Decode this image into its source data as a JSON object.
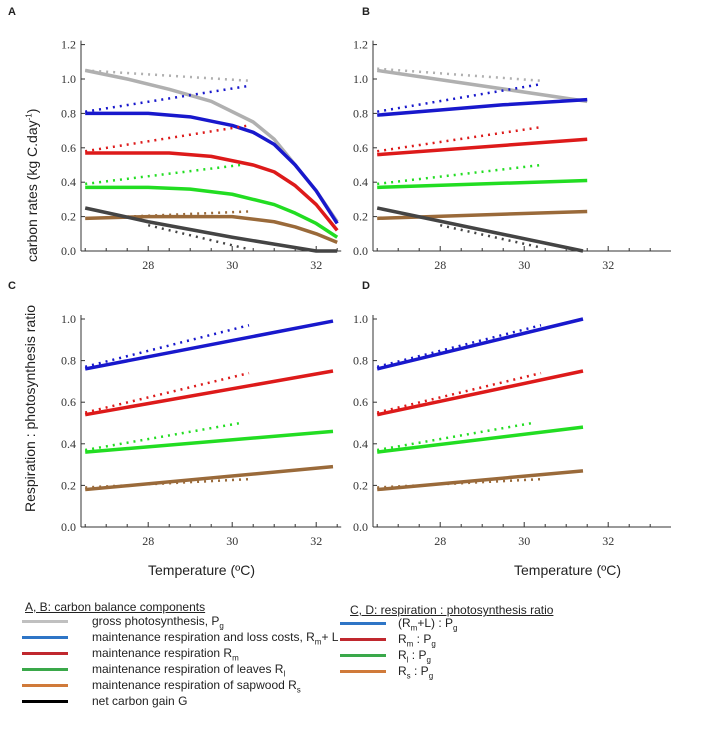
{
  "panel_labels": [
    "A",
    "B",
    "C",
    "D"
  ],
  "y_label_ab": {
    "pre": "carbon rates (kg C.day",
    "sup": "-1",
    "post": ")"
  },
  "y_label_cd": "Respiration : photosynthesis ratio",
  "x_label": "Temperature (ºC)",
  "legend_ab": {
    "title": "A, B: carbon balance components",
    "items": [
      {
        "color": "#c0c0c0",
        "pre": "gross photosynthesis, P",
        "sub1": "g",
        "mid": "",
        "sub2": ""
      },
      {
        "color": "#2e75c6",
        "pre": "maintenance respiration and loss costs, R",
        "sub1": "m",
        "mid": "+ L",
        "sub2": ""
      },
      {
        "color": "#c0282e",
        "pre": "maintenance respiration R",
        "sub1": "m",
        "mid": "",
        "sub2": ""
      },
      {
        "color": "#3aa84a",
        "pre": "maintenance respiration of leaves R",
        "sub1": "l",
        "mid": "",
        "sub2": ""
      },
      {
        "color": "#d07a3a",
        "pre": "maintenance respiration of sapwood R",
        "sub1": "s",
        "mid": "",
        "sub2": ""
      },
      {
        "color": "#000000",
        "pre": "net carbon gain G",
        "sub1": "",
        "mid": "",
        "sub2": ""
      }
    ]
  },
  "legend_cd": {
    "title": "C, D: respiration : photosynthesis ratio",
    "items": [
      {
        "color": "#2e75c6",
        "pre": "(R",
        "sub1": "m",
        "mid": "+L) : P",
        "sub2": "g"
      },
      {
        "color": "#c0282e",
        "pre": "R",
        "sub1": "m",
        "mid": " : P",
        "sub2": "g"
      },
      {
        "color": "#3aa84a",
        "pre": "R",
        "sub1": "l",
        "mid": " : P",
        "sub2": "g"
      },
      {
        "color": "#d07a3a",
        "pre": "R",
        "sub1": "s",
        "mid": " : P",
        "sub2": "g"
      }
    ]
  },
  "chart_data": [
    {
      "panel": "A",
      "type": "line",
      "xlabel": "",
      "ylabel": "carbon rates (kg C.day-1)",
      "xlim": [
        26.4,
        32.5
      ],
      "ylim": [
        0,
        1.2
      ],
      "xticks": [
        28,
        30,
        32
      ],
      "yticks": [
        0.0,
        0.2,
        0.4,
        0.6,
        0.8,
        1.0,
        1.2
      ],
      "series": [
        {
          "name": "gross photosynthesis Pg",
          "color": "#b0b0b0",
          "solid": [
            [
              26.5,
              1.05
            ],
            [
              27.5,
              1.0
            ],
            [
              28.5,
              0.94
            ],
            [
              29.5,
              0.87
            ],
            [
              30.5,
              0.75
            ],
            [
              31,
              0.65
            ],
            [
              31.5,
              0.5
            ],
            [
              32,
              0.35
            ],
            [
              32.5,
              0.17
            ]
          ],
          "dotted": [
            [
              26.5,
              1.05
            ],
            [
              30.4,
              0.99
            ]
          ]
        },
        {
          "name": "Rm+L",
          "color": "#1818cc",
          "solid": [
            [
              26.5,
              0.8
            ],
            [
              28,
              0.8
            ],
            [
              29,
              0.78
            ],
            [
              30,
              0.73
            ],
            [
              30.5,
              0.69
            ],
            [
              31,
              0.62
            ],
            [
              31.5,
              0.5
            ],
            [
              32,
              0.35
            ],
            [
              32.5,
              0.16
            ]
          ],
          "dotted": [
            [
              26.5,
              0.81
            ],
            [
              30.4,
              0.96
            ]
          ]
        },
        {
          "name": "Rm",
          "color": "#dd1a1a",
          "solid": [
            [
              26.5,
              0.57
            ],
            [
              28.5,
              0.57
            ],
            [
              29.5,
              0.55
            ],
            [
              30.5,
              0.5
            ],
            [
              31,
              0.46
            ],
            [
              31.5,
              0.38
            ],
            [
              32,
              0.27
            ],
            [
              32.5,
              0.12
            ]
          ],
          "dotted": [
            [
              26.5,
              0.58
            ],
            [
              30.4,
              0.73
            ]
          ]
        },
        {
          "name": "Rl",
          "color": "#22dd22",
          "solid": [
            [
              26.5,
              0.37
            ],
            [
              28,
              0.37
            ],
            [
              29,
              0.36
            ],
            [
              30,
              0.33
            ],
            [
              30.5,
              0.3
            ],
            [
              31,
              0.27
            ],
            [
              31.5,
              0.22
            ],
            [
              32,
              0.16
            ],
            [
              32.5,
              0.08
            ]
          ],
          "dotted": [
            [
              26.5,
              0.39
            ],
            [
              30.2,
              0.5
            ]
          ]
        },
        {
          "name": "Rs",
          "color": "#9a6a3a",
          "solid": [
            [
              26.5,
              0.19
            ],
            [
              28,
              0.2
            ],
            [
              30,
              0.2
            ],
            [
              31,
              0.17
            ],
            [
              31.5,
              0.14
            ],
            [
              32,
              0.1
            ],
            [
              32.5,
              0.05
            ]
          ],
          "dotted": [
            [
              27.5,
              0.2
            ],
            [
              30.4,
              0.23
            ]
          ]
        },
        {
          "name": "net carbon gain G",
          "color": "#444444",
          "solid": [
            [
              26.5,
              0.25
            ],
            [
              28,
              0.17
            ],
            [
              30,
              0.08
            ],
            [
              31,
              0.04
            ],
            [
              32,
              0.0
            ],
            [
              32.5,
              0.0
            ]
          ],
          "dotted": [
            [
              28,
              0.15
            ],
            [
              30.4,
              0.01
            ]
          ]
        }
      ]
    },
    {
      "panel": "B",
      "type": "line",
      "xlabel": "",
      "ylabel": "",
      "xlim": [
        26.4,
        33.4
      ],
      "ylim": [
        0,
        1.2
      ],
      "xticks": [
        28,
        30,
        32
      ],
      "yticks": [
        0.0,
        0.2,
        0.4,
        0.6,
        0.8,
        1.0,
        1.2
      ],
      "series": [
        {
          "name": "gross photosynthesis Pg",
          "color": "#b0b0b0",
          "solid": [
            [
              26.5,
              1.05
            ],
            [
              31.5,
              0.87
            ]
          ],
          "dotted": [
            [
              26.5,
              1.06
            ],
            [
              30.4,
              0.99
            ]
          ]
        },
        {
          "name": "Rm+L",
          "color": "#1818cc",
          "solid": [
            [
              26.5,
              0.79
            ],
            [
              28,
              0.82
            ],
            [
              29.5,
              0.85
            ],
            [
              31.5,
              0.88
            ]
          ],
          "dotted": [
            [
              26.5,
              0.81
            ],
            [
              30.4,
              0.97
            ]
          ]
        },
        {
          "name": "Rm",
          "color": "#dd1a1a",
          "solid": [
            [
              26.5,
              0.56
            ],
            [
              31.5,
              0.65
            ]
          ],
          "dotted": [
            [
              26.5,
              0.58
            ],
            [
              30.4,
              0.72
            ]
          ]
        },
        {
          "name": "Rl",
          "color": "#22dd22",
          "solid": [
            [
              26.5,
              0.37
            ],
            [
              31.5,
              0.41
            ]
          ],
          "dotted": [
            [
              26.5,
              0.39
            ],
            [
              30.4,
              0.5
            ]
          ]
        },
        {
          "name": "Rs",
          "color": "#9a6a3a",
          "solid": [
            [
              26.5,
              0.19
            ],
            [
              31.5,
              0.23
            ]
          ],
          "dotted": []
        },
        {
          "name": "net carbon gain G",
          "color": "#444444",
          "solid": [
            [
              26.5,
              0.25
            ],
            [
              31.4,
              0.0
            ]
          ],
          "dotted": [
            [
              28,
              0.15
            ],
            [
              30.4,
              0.02
            ]
          ]
        }
      ]
    },
    {
      "panel": "C",
      "type": "line",
      "xlabel": "Temperature (ºC)",
      "ylabel": "Respiration : photosynthesis ratio",
      "xlim": [
        26.4,
        32.5
      ],
      "ylim": [
        0,
        1.0
      ],
      "xticks": [
        28,
        30,
        32
      ],
      "yticks": [
        0.0,
        0.2,
        0.4,
        0.6,
        0.8,
        1.0
      ],
      "series": [
        {
          "name": "(Rm+L):Pg",
          "color": "#1818cc",
          "solid": [
            [
              26.5,
              0.76
            ],
            [
              32.4,
              0.99
            ]
          ],
          "dotted": [
            [
              26.5,
              0.77
            ],
            [
              30.4,
              0.97
            ]
          ]
        },
        {
          "name": "Rm:Pg",
          "color": "#dd1a1a",
          "solid": [
            [
              26.5,
              0.54
            ],
            [
              32.4,
              0.75
            ]
          ],
          "dotted": [
            [
              26.5,
              0.55
            ],
            [
              30.4,
              0.74
            ]
          ]
        },
        {
          "name": "Rl:Pg",
          "color": "#22dd22",
          "solid": [
            [
              26.5,
              0.36
            ],
            [
              32.4,
              0.46
            ]
          ],
          "dotted": [
            [
              26.5,
              0.37
            ],
            [
              30.2,
              0.5
            ]
          ]
        },
        {
          "name": "Rs:Pg",
          "color": "#9a6a3a",
          "solid": [
            [
              26.5,
              0.18
            ],
            [
              32.4,
              0.29
            ]
          ],
          "dotted": [
            [
              26.5,
              0.19
            ],
            [
              30.4,
              0.23
            ]
          ]
        }
      ]
    },
    {
      "panel": "D",
      "type": "line",
      "xlabel": "Temperature (ºC)",
      "ylabel": "",
      "xlim": [
        26.4,
        33.4
      ],
      "ylim": [
        0,
        1.0
      ],
      "xticks": [
        28,
        30,
        32
      ],
      "yticks": [
        0.0,
        0.2,
        0.4,
        0.6,
        0.8,
        1.0
      ],
      "series": [
        {
          "name": "(Rm+L):Pg",
          "color": "#1818cc",
          "solid": [
            [
              26.5,
              0.76
            ],
            [
              31.4,
              1.0
            ]
          ],
          "dotted": [
            [
              26.5,
              0.77
            ],
            [
              30.4,
              0.97
            ]
          ]
        },
        {
          "name": "Rm:Pg",
          "color": "#dd1a1a",
          "solid": [
            [
              26.5,
              0.54
            ],
            [
              31.4,
              0.75
            ]
          ],
          "dotted": [
            [
              26.5,
              0.55
            ],
            [
              30.4,
              0.74
            ]
          ]
        },
        {
          "name": "Rl:Pg",
          "color": "#22dd22",
          "solid": [
            [
              26.5,
              0.36
            ],
            [
              31.4,
              0.48
            ]
          ],
          "dotted": [
            [
              26.5,
              0.37
            ],
            [
              30.2,
              0.5
            ]
          ]
        },
        {
          "name": "Rs:Pg",
          "color": "#9a6a3a",
          "solid": [
            [
              26.5,
              0.18
            ],
            [
              31.4,
              0.27
            ]
          ],
          "dotted": [
            [
              26.5,
              0.19
            ],
            [
              30.4,
              0.23
            ]
          ]
        }
      ]
    }
  ]
}
